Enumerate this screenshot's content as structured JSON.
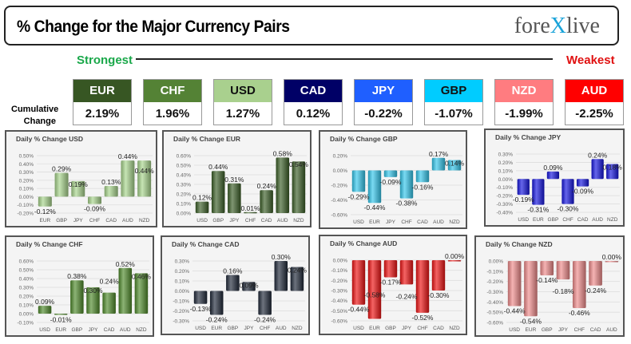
{
  "header": {
    "title": "% Change for the Major Currency Pairs",
    "logo": "forexlive"
  },
  "ranking": {
    "strongest": "Strongest",
    "weakest": "Weakest",
    "row_label_1": "Cumulative",
    "row_label_2": "Change",
    "currencies": [
      {
        "code": "EUR",
        "value": "2.19%",
        "color": "#375623",
        "text": "#ffffff"
      },
      {
        "code": "CHF",
        "value": "1.96%",
        "color": "#548235",
        "text": "#ffffff"
      },
      {
        "code": "USD",
        "value": "1.27%",
        "color": "#a9d08e",
        "text": "#111111"
      },
      {
        "code": "CAD",
        "value": "0.12%",
        "color": "#000066",
        "text": "#ffffff"
      },
      {
        "code": "JPY",
        "value": "-0.22%",
        "color": "#1f5fff",
        "text": "#ffffff"
      },
      {
        "code": "GBP",
        "value": "-1.07%",
        "color": "#00ccff",
        "text": "#111111"
      },
      {
        "code": "NZD",
        "value": "-1.99%",
        "color": "#ff7c80",
        "text": "#ffffff"
      },
      {
        "code": "AUD",
        "value": "-2.25%",
        "color": "#ff0000",
        "text": "#ffffff"
      }
    ]
  },
  "chart_data": [
    {
      "type": "bar",
      "title": "Daily % Change USD",
      "categories": [
        "EUR",
        "GBP",
        "JPY",
        "CHF",
        "CAD",
        "AUD",
        "NZD"
      ],
      "values": [
        -0.12,
        0.29,
        0.19,
        -0.09,
        0.13,
        0.44,
        0.44
      ],
      "ylim": [
        -0.2,
        0.5
      ],
      "step": 0.1,
      "color": "#a8d58c",
      "grid": true
    },
    {
      "type": "bar",
      "title": "Daily % Change EUR",
      "categories": [
        "USD",
        "GBP",
        "JPY",
        "CHF",
        "CAD",
        "AUD",
        "NZD"
      ],
      "values": [
        0.12,
        0.44,
        0.31,
        0.01,
        0.24,
        0.58,
        0.54
      ],
      "ylim": [
        0,
        0.6
      ],
      "step": 0.1,
      "color": "#3a5e26",
      "grid": true
    },
    {
      "type": "bar",
      "title": "Daily % Change GBP",
      "categories": [
        "USD",
        "EUR",
        "JPY",
        "CHF",
        "CAD",
        "AUD",
        "NZD"
      ],
      "values": [
        -0.29,
        -0.44,
        -0.09,
        -0.38,
        -0.16,
        0.17,
        0.14
      ],
      "ylim": [
        -0.6,
        0.2
      ],
      "step": 0.2,
      "color": "#33c6ec",
      "grid": true
    },
    {
      "type": "bar",
      "title": "Daily % Change JPY",
      "categories": [
        "USD",
        "EUR",
        "GBP",
        "CHF",
        "CAD",
        "AUD",
        "NZD"
      ],
      "values": [
        -0.19,
        -0.31,
        0.09,
        -0.3,
        -0.09,
        0.24,
        0.18
      ],
      "ylim": [
        -0.4,
        0.3
      ],
      "step": 0.1,
      "color": "#1414e0",
      "grid": true
    },
    {
      "type": "bar",
      "title": "Daily % Change CHF",
      "categories": [
        "USD",
        "EUR",
        "GBP",
        "JPY",
        "CAD",
        "AUD",
        "NZD"
      ],
      "values": [
        0.09,
        -0.01,
        0.38,
        0.3,
        0.24,
        0.52,
        0.46
      ],
      "ylim": [
        -0.1,
        0.6
      ],
      "step": 0.1,
      "color": "#4e8a2a",
      "grid": true
    },
    {
      "type": "bar",
      "title": "Daily % Change CAD",
      "categories": [
        "USD",
        "EUR",
        "GBP",
        "JPY",
        "CHF",
        "AUD",
        "NZD"
      ],
      "values": [
        -0.13,
        -0.24,
        0.16,
        0.09,
        -0.24,
        0.3,
        0.24
      ],
      "ylim": [
        -0.3,
        0.3
      ],
      "step": 0.1,
      "color": "#1e2838",
      "grid": true
    },
    {
      "type": "bar",
      "title": "Daily % Change AUD",
      "categories": [
        "USD",
        "EUR",
        "GBP",
        "JPY",
        "CHF",
        "CAD",
        "NZD"
      ],
      "values": [
        -0.44,
        -0.58,
        -0.17,
        -0.24,
        -0.52,
        -0.3,
        0.0
      ],
      "ylim": [
        -0.6,
        0
      ],
      "step": 0.1,
      "color": "#ee1111",
      "grid": true
    },
    {
      "type": "bar",
      "title": "Daily % Change NZD",
      "categories": [
        "USD",
        "EUR",
        "GBP",
        "JPY",
        "CHF",
        "CAD",
        "AUD"
      ],
      "values": [
        -0.44,
        -0.54,
        -0.14,
        -0.18,
        -0.46,
        -0.24,
        0.0
      ],
      "ylim": [
        -0.6,
        0
      ],
      "step": 0.1,
      "color": "#f08a8a",
      "grid": true
    }
  ]
}
